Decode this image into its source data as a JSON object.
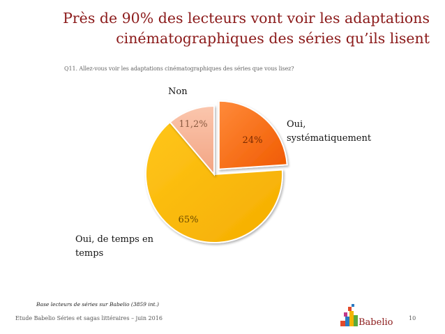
{
  "title_line1": "Près de 90% des lecteurs vont voir les adaptations",
  "title_line2": "cinématographiques des séries qu’ils lisent",
  "question": "Q11. Allez-vous voir les adaptations cinématographiques des séries que vous lisez?",
  "base_note": "Base lecteurs de séries sur Babelio  (3859  int.)",
  "footer_left": "Etude Babelio Séries et sagas littéraires – juin 2016",
  "page_number": "10",
  "logo_text": "Babelio",
  "colors": {
    "title": "#8b1a1a",
    "oui_systematiquement": "#ff6a1a",
    "oui_de_temps": "#ffbe00",
    "non": "#f7b59a"
  },
  "chart_data": {
    "type": "pie",
    "slices": [
      {
        "label": "Oui, systématiquement",
        "value": 24,
        "display": "24%",
        "color": "#ff6a1a",
        "exploded": true
      },
      {
        "label": "Oui, de temps en temps",
        "value": 65,
        "display": "65%",
        "color": "#ffbe00",
        "exploded": false
      },
      {
        "label": "Non",
        "value": 11.2,
        "display": "11,2%",
        "color": "#f7b59a",
        "exploded": false
      }
    ]
  }
}
